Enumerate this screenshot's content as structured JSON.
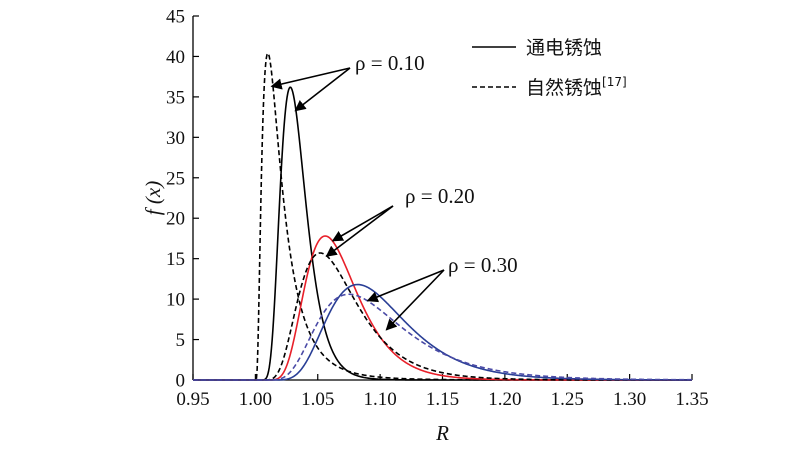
{
  "chart_data": {
    "type": "line",
    "xlabel": "R",
    "ylabel": "f (x)",
    "xlim": [
      0.95,
      1.35
    ],
    "ylim": [
      0,
      45
    ],
    "xticks": [
      "0.95",
      "1.00",
      "1.05",
      "1.10",
      "1.15",
      "1.20",
      "1.25",
      "1.30",
      "1.35"
    ],
    "yticks": [
      "0",
      "5",
      "10",
      "15",
      "20",
      "25",
      "30",
      "35",
      "40",
      "45"
    ],
    "grid": false,
    "legend_position": "top-right",
    "legend": [
      {
        "label": "通电锈蚀",
        "style": "solid",
        "color": "#000000"
      },
      {
        "label": "自然锈蚀",
        "sup": "[17]",
        "style": "dashed",
        "color": "#000000"
      }
    ],
    "annotations": [
      {
        "text": "ρ = 0.10"
      },
      {
        "text": "ρ = 0.20"
      },
      {
        "text": "ρ = 0.30"
      }
    ],
    "series": [
      {
        "rho": "0.10",
        "style": "dashed",
        "color": "#000000",
        "peak_x": 1.01,
        "peak_y": 40.4
      },
      {
        "rho": "0.10",
        "style": "solid",
        "color": "#000000",
        "peak_x": 1.028,
        "peak_y": 36.2
      },
      {
        "rho": "0.20",
        "style": "solid",
        "color": "#e8202a",
        "peak_x": 1.056,
        "peak_y": 17.8
      },
      {
        "rho": "0.20",
        "style": "dashed",
        "color": "#000000",
        "peak_x": 1.052,
        "peak_y": 15.7
      },
      {
        "rho": "0.30",
        "style": "solid",
        "color": "#2a3f96",
        "peak_x": 1.082,
        "peak_y": 11.8
      },
      {
        "rho": "0.30",
        "style": "dashed",
        "color": "#4a4aa6",
        "peak_x": 1.075,
        "peak_y": 10.6
      }
    ]
  }
}
